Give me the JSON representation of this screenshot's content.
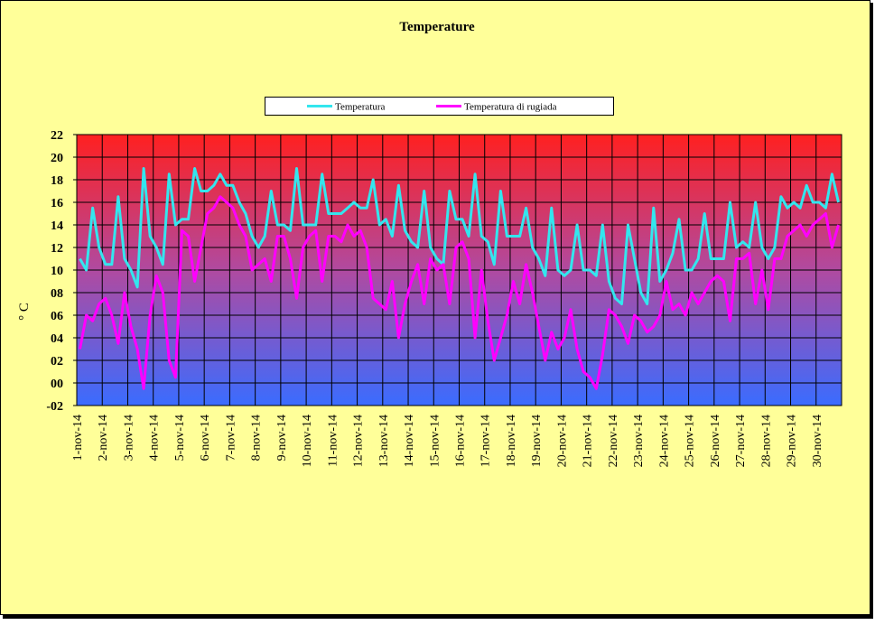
{
  "chart_data": {
    "type": "line",
    "title": "Temperature",
    "y_label": "° C",
    "categories": [
      "1-nov-14",
      null,
      null,
      null,
      "2-nov-14",
      null,
      null,
      null,
      "3-nov-14",
      null,
      null,
      null,
      "4-nov-14",
      null,
      null,
      null,
      "5-nov-14",
      null,
      null,
      null,
      "6-nov-14",
      null,
      null,
      null,
      "7-nov-14",
      null,
      null,
      null,
      "8-nov-14",
      null,
      null,
      null,
      "9-nov-14",
      null,
      null,
      null,
      "10-nov-14",
      null,
      null,
      null,
      "11-nov-14",
      null,
      null,
      null,
      "12-nov-14",
      null,
      null,
      null,
      "13-nov-14",
      null,
      null,
      null,
      "14-nov-14",
      null,
      null,
      null,
      "15-nov-14",
      null,
      null,
      null,
      "16-nov-14",
      null,
      null,
      null,
      "17-nov-14",
      null,
      null,
      null,
      "18-nov-14",
      null,
      null,
      null,
      "19-nov-14",
      null,
      null,
      null,
      "20-nov-14",
      null,
      null,
      null,
      "21-nov-14",
      null,
      null,
      null,
      "22-nov-14",
      null,
      null,
      null,
      "23-nov-14",
      null,
      null,
      null,
      "24-nov-14",
      null,
      null,
      null,
      "25-nov-14",
      null,
      null,
      null,
      "26-nov-14",
      null,
      null,
      null,
      "27-nov-14",
      null,
      null,
      null,
      "28-nov-14",
      null,
      null,
      null,
      "29-nov-14",
      null,
      null,
      null,
      "30-nov-14",
      null,
      null,
      null
    ],
    "series": [
      {
        "name": "Temperatura",
        "color": "#33e6ee",
        "values": [
          11,
          10,
          15.5,
          12,
          10.5,
          10.5,
          16.5,
          11,
          10,
          8.5,
          19,
          13,
          12,
          10.5,
          18.5,
          14,
          14.5,
          14.5,
          19,
          17,
          17,
          17.5,
          18.5,
          17.5,
          17.5,
          16,
          15,
          13,
          12,
          13,
          17,
          14,
          14,
          13.5,
          19,
          14,
          14,
          14,
          18.5,
          15,
          15,
          15,
          15.5,
          16,
          15.5,
          15.5,
          18,
          14,
          14.5,
          13,
          17.5,
          13.5,
          12.5,
          12,
          17,
          12,
          11,
          10.5,
          17,
          14.5,
          14.5,
          13,
          18.5,
          13,
          12.5,
          10.5,
          17,
          13,
          13,
          13,
          15.5,
          12,
          11,
          9.5,
          15.5,
          10,
          9.5,
          10,
          14,
          10,
          10,
          9.5,
          14,
          9,
          7.5,
          7,
          14,
          11,
          8,
          7,
          15.5,
          9,
          10,
          11.5,
          14.5,
          10,
          10,
          11,
          15,
          11,
          11,
          11,
          16,
          12,
          12.5,
          12,
          16,
          12,
          11,
          12,
          16.5,
          15.5,
          16,
          15.5,
          17.5,
          16,
          16,
          15.5,
          18.5,
          16
        ]
      },
      {
        "name": "Temperatura di rugiada",
        "color": "#ff00ff",
        "values": [
          3,
          6,
          5.5,
          7,
          7.5,
          6,
          3.5,
          8,
          5,
          3,
          -0.5,
          6,
          9.5,
          8,
          2,
          0.5,
          13.5,
          13,
          9,
          12,
          15,
          15.5,
          16.5,
          16,
          15.5,
          14,
          13,
          10,
          10.5,
          11,
          9,
          13,
          13,
          11,
          7.5,
          12,
          13,
          13.5,
          9,
          13,
          13,
          12.5,
          14,
          13,
          13.5,
          12,
          7.5,
          7,
          6.5,
          9,
          4,
          7,
          9,
          10.5,
          7,
          11,
          10,
          10.5,
          7,
          12,
          12.5,
          11,
          4,
          10,
          5.5,
          2,
          4,
          6,
          9,
          7,
          10.5,
          8,
          5,
          2,
          4.5,
          3,
          4,
          6.5,
          3,
          1,
          0.5,
          -0.5,
          2.5,
          6.5,
          6,
          5,
          3.5,
          6,
          5.5,
          4.5,
          5,
          6,
          9,
          6.5,
          7,
          6,
          8,
          7,
          8,
          9,
          9.5,
          9,
          5.5,
          11,
          11,
          11.5,
          7,
          10,
          6.5,
          11,
          11,
          13,
          13.5,
          14,
          13,
          14,
          14.5,
          15,
          12,
          14
        ]
      }
    ],
    "ylim": [
      -2,
      22
    ],
    "yticks": [
      {
        "value": -2,
        "label": "-02"
      },
      {
        "value": 0,
        "label": "00"
      },
      {
        "value": 2,
        "label": "02"
      },
      {
        "value": 4,
        "label": "04"
      },
      {
        "value": 6,
        "label": "06"
      },
      {
        "value": 8,
        "label": "08"
      },
      10,
      12,
      14,
      16,
      18,
      20,
      22
    ],
    "grid": true
  }
}
